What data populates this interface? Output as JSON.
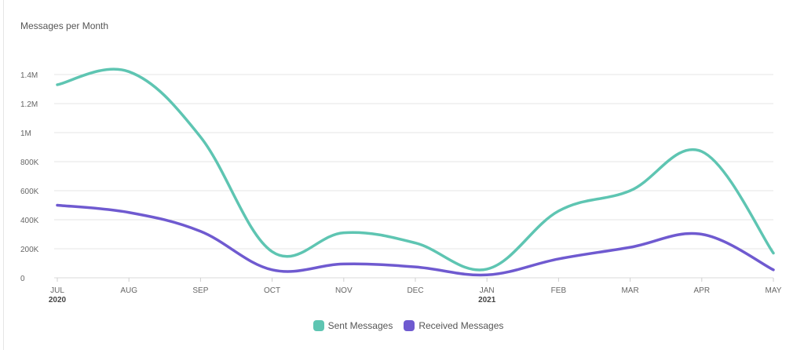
{
  "chart_data": {
    "type": "line",
    "title": "Messages per Month",
    "categories": [
      "JUL",
      "AUG",
      "SEP",
      "OCT",
      "NOV",
      "DEC",
      "JAN",
      "FEB",
      "MAR",
      "APR",
      "MAY"
    ],
    "year_labels": [
      "2020",
      "",
      "",
      "",
      "",
      "",
      "2021",
      "",
      "",
      "",
      ""
    ],
    "y_ticks": [
      {
        "value": 0,
        "label": "0"
      },
      {
        "value": 200000,
        "label": "200K"
      },
      {
        "value": 400000,
        "label": "400K"
      },
      {
        "value": 600000,
        "label": "600K"
      },
      {
        "value": 800000,
        "label": "800K"
      },
      {
        "value": 1000000,
        "label": "1M"
      },
      {
        "value": 1200000,
        "label": "1.2M"
      },
      {
        "value": 1400000,
        "label": "1.4M"
      }
    ],
    "ylim": [
      0,
      1400000
    ],
    "grid": true,
    "legend_position": "bottom-center",
    "series": [
      {
        "name": "Sent Messages",
        "color": "#5ec5b2",
        "values": [
          1330000,
          1420000,
          970000,
          180000,
          310000,
          240000,
          60000,
          460000,
          600000,
          870000,
          170000
        ]
      },
      {
        "name": "Received Messages",
        "color": "#6f5ad0",
        "values": [
          500000,
          450000,
          320000,
          55000,
          95000,
          75000,
          20000,
          130000,
          210000,
          300000,
          55000
        ]
      }
    ]
  }
}
